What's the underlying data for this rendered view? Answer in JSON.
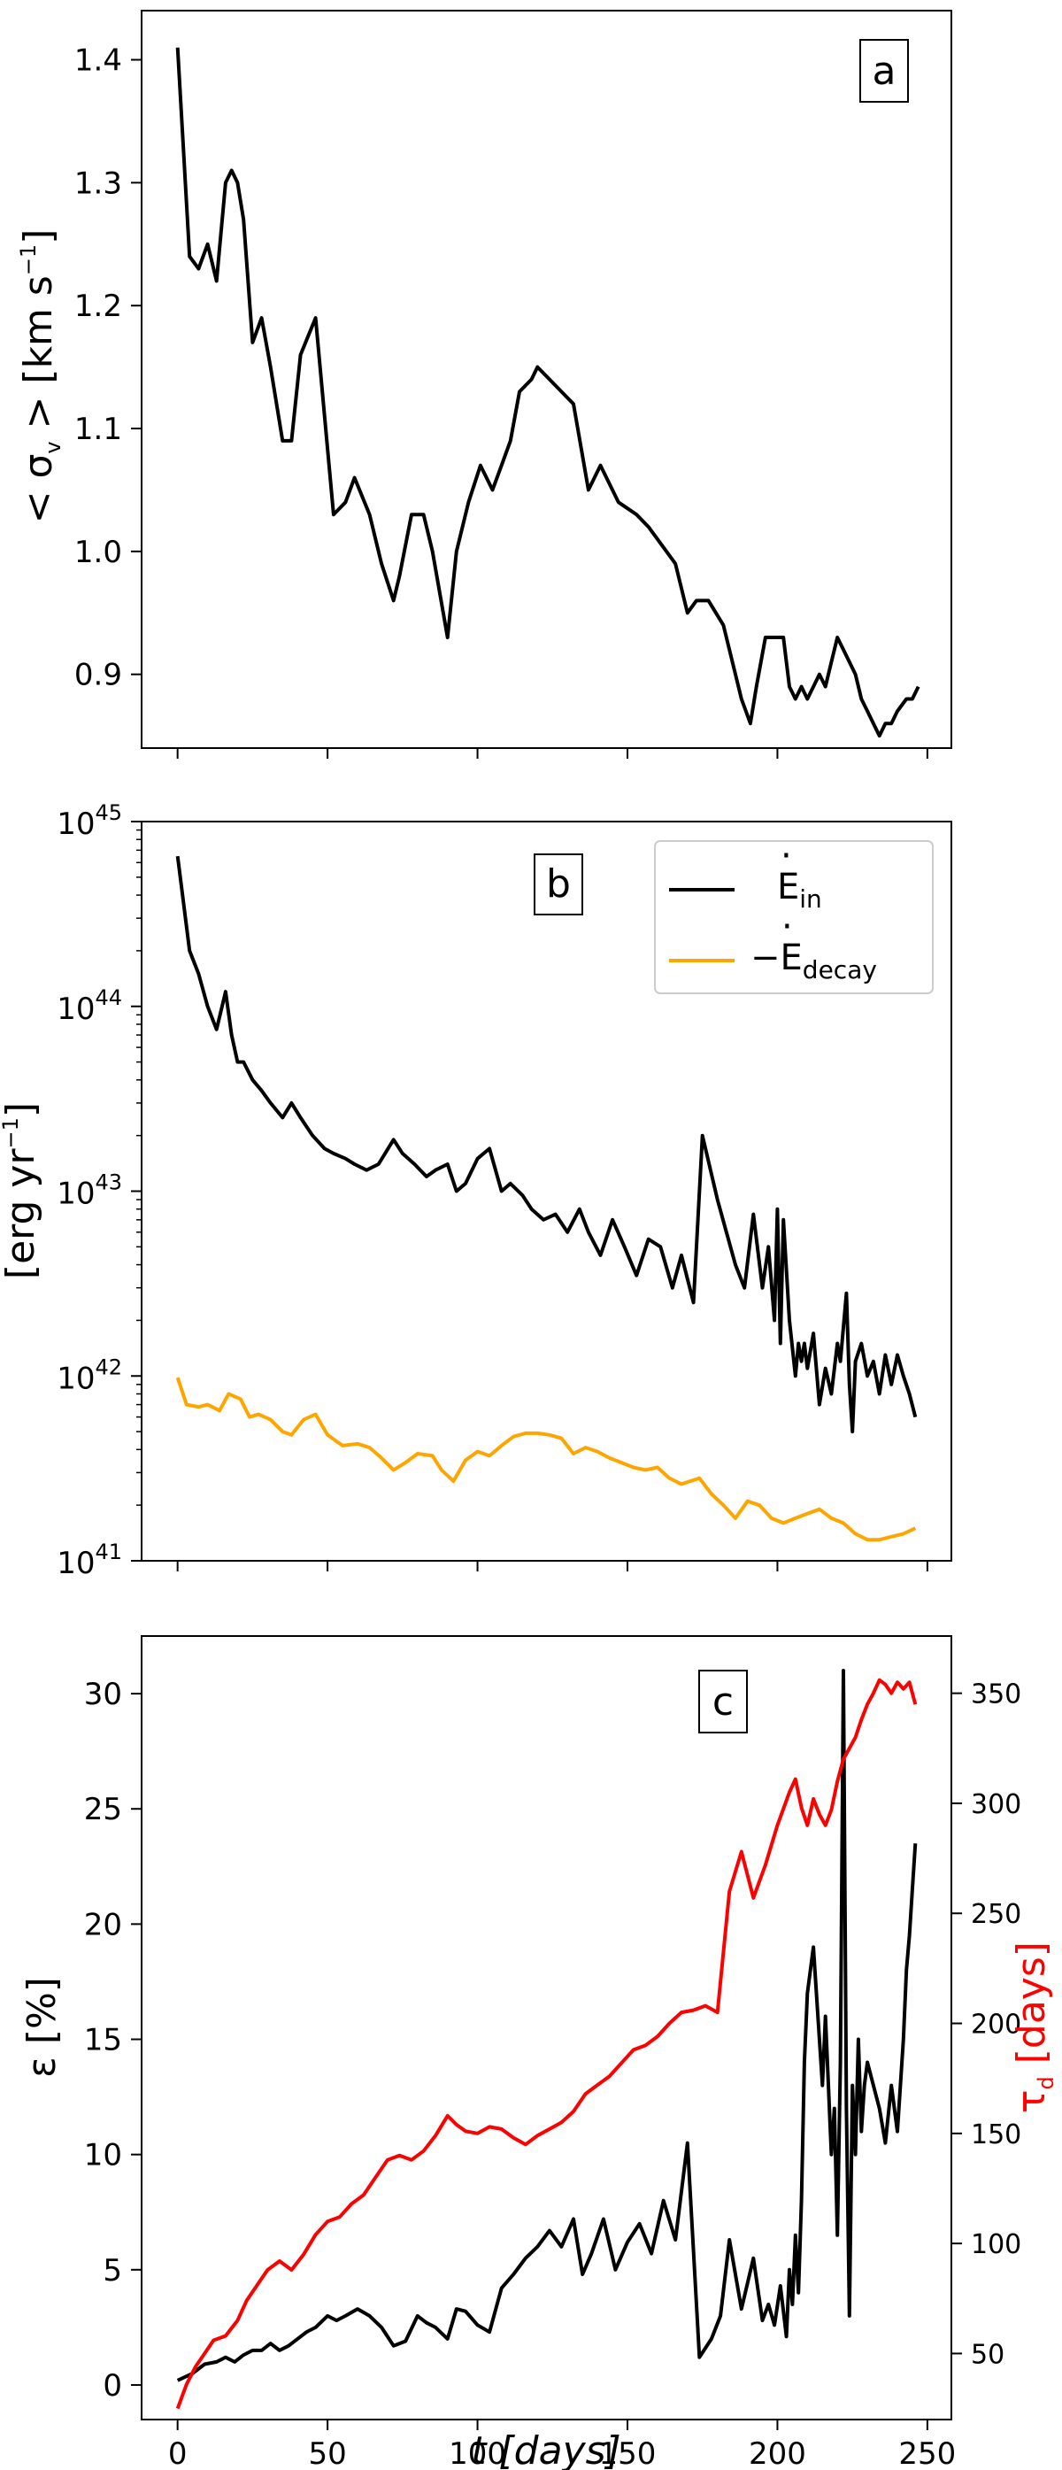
{
  "chart_data": [
    {
      "type": "line",
      "panel_label": "a",
      "ylabel": "< σ_v > [km s^-1]",
      "xlim": [
        -12,
        258
      ],
      "ylim": [
        0.84,
        1.44
      ],
      "xticks": [
        0,
        50,
        100,
        150,
        200,
        250
      ],
      "yticks": [
        0.9,
        1.0,
        1.1,
        1.2,
        1.3,
        1.4
      ],
      "ytick_labels": [
        "0.9",
        "1.0",
        "1.1",
        "1.2",
        "1.3",
        "1.4"
      ],
      "series": [
        {
          "color": "#000000",
          "x": [
            0,
            4,
            7,
            10,
            13,
            16,
            18,
            20,
            22,
            25,
            28,
            31,
            35,
            38,
            41,
            46,
            52,
            56,
            59,
            64,
            68,
            72,
            74,
            78,
            82,
            85,
            90,
            93,
            97,
            101,
            105,
            108,
            111,
            114,
            118,
            120,
            124,
            128,
            132,
            137,
            141,
            143,
            147,
            153,
            157,
            163,
            166,
            170,
            173,
            177,
            182,
            186,
            188,
            191,
            193,
            196,
            198,
            202,
            204,
            206,
            208,
            210,
            212,
            214,
            216,
            218,
            220,
            222,
            224,
            226,
            228,
            230,
            232,
            234,
            236,
            238,
            240,
            243,
            245,
            247
          ],
          "y": [
            1.41,
            1.24,
            1.23,
            1.25,
            1.22,
            1.3,
            1.31,
            1.3,
            1.27,
            1.17,
            1.19,
            1.15,
            1.09,
            1.09,
            1.16,
            1.19,
            1.03,
            1.04,
            1.06,
            1.03,
            0.99,
            0.96,
            0.98,
            1.03,
            1.03,
            1.0,
            0.93,
            1.0,
            1.04,
            1.07,
            1.05,
            1.07,
            1.09,
            1.13,
            1.14,
            1.15,
            1.14,
            1.13,
            1.12,
            1.05,
            1.07,
            1.06,
            1.04,
            1.03,
            1.02,
            1.0,
            0.99,
            0.95,
            0.96,
            0.96,
            0.94,
            0.9,
            0.88,
            0.86,
            0.89,
            0.93,
            0.93,
            0.93,
            0.89,
            0.88,
            0.89,
            0.88,
            0.89,
            0.9,
            0.89,
            0.91,
            0.93,
            0.92,
            0.91,
            0.9,
            0.88,
            0.87,
            0.86,
            0.85,
            0.86,
            0.86,
            0.87,
            0.88,
            0.88,
            0.89
          ]
        }
      ]
    },
    {
      "type": "line",
      "panel_label": "b",
      "ylabel": "[erg yr^-1]",
      "yscale": "log",
      "xlim": [
        -12,
        258
      ],
      "ylim": [
        1e+41,
        1e+45
      ],
      "xticks": [
        0,
        50,
        100,
        150,
        200,
        250
      ],
      "ytick_exponents": [
        41,
        42,
        43,
        44,
        45
      ],
      "legend_position": "top-right",
      "series": [
        {
          "name": "Ė_in",
          "color": "#000000",
          "x": [
            0,
            4,
            7,
            10,
            13,
            16,
            18,
            20,
            22,
            25,
            28,
            31,
            35,
            38,
            41,
            45,
            49,
            52,
            56,
            59,
            63,
            67,
            72,
            75,
            79,
            83,
            86,
            90,
            93,
            96,
            100,
            104,
            108,
            111,
            115,
            118,
            122,
            126,
            130,
            134,
            137,
            141,
            145,
            149,
            153,
            157,
            161,
            165,
            168,
            172,
            175,
            180,
            183,
            186,
            189,
            192,
            195,
            197,
            199,
            200,
            201,
            202,
            204,
            206,
            207,
            208,
            209,
            210,
            212,
            214,
            216,
            218,
            220,
            221,
            223,
            224,
            225,
            226,
            228,
            230,
            232,
            234,
            236,
            238,
            240,
            242,
            244,
            246
          ],
          "y": [
            6.5e+44,
            2e+44,
            1.5e+44,
            1e+44,
            7.5e+43,
            1.2e+44,
            7e+43,
            5e+43,
            5e+43,
            4e+43,
            3.5e+43,
            3e+43,
            2.5e+43,
            3e+43,
            2.5e+43,
            2e+43,
            1.7e+43,
            1.6e+43,
            1.5e+43,
            1.4e+43,
            1.3e+43,
            1.4e+43,
            1.9e+43,
            1.6e+43,
            1.4e+43,
            1.2e+43,
            1.3e+43,
            1.4e+43,
            1e+43,
            1.1e+43,
            1.5e+43,
            1.7e+43,
            1e+43,
            1.1e+43,
            9.5e+42,
            8e+42,
            7e+42,
            7.5e+42,
            6e+42,
            8e+42,
            6e+42,
            4.5e+42,
            7e+42,
            5e+42,
            3.5e+42,
            5.5e+42,
            5e+42,
            3e+42,
            4.5e+42,
            2.5e+42,
            2e+43,
            9e+42,
            6e+42,
            4e+42,
            3e+42,
            7.5e+42,
            3e+42,
            5e+42,
            2e+42,
            8e+42,
            1.5e+42,
            7e+42,
            2e+42,
            1e+42,
            1.5e+42,
            1.2e+42,
            1.5e+42,
            1.1e+42,
            1.7e+42,
            7e+41,
            1.1e+42,
            8e+41,
            1.5e+42,
            1.2e+42,
            2.8e+42,
            9e+41,
            5e+41,
            1.2e+42,
            1.5e+42,
            1e+42,
            1.2e+42,
            8e+41,
            1.3e+42,
            9e+41,
            1.3e+42,
            1e+42,
            8e+41,
            6e+41
          ]
        },
        {
          "name": "−Ė_decay",
          "color": "#FFA500",
          "x": [
            0,
            3,
            7,
            10,
            14,
            17,
            21,
            24,
            27,
            31,
            35,
            38,
            42,
            46,
            50,
            55,
            60,
            64,
            68,
            72,
            76,
            80,
            85,
            88,
            92,
            96,
            100,
            104,
            108,
            112,
            116,
            120,
            124,
            128,
            132,
            136,
            140,
            144,
            148,
            152,
            156,
            160,
            164,
            168,
            171,
            174,
            178,
            182,
            186,
            190,
            194,
            198,
            202,
            206,
            210,
            214,
            218,
            222,
            226,
            230,
            234,
            238,
            242,
            246
          ],
          "y": [
            9.8e+41,
            7e+41,
            6.8e+41,
            7e+41,
            6.5e+41,
            8e+41,
            7.5e+41,
            6e+41,
            6.2e+41,
            5.8e+41,
            5e+41,
            4.8e+41,
            5.8e+41,
            6.2e+41,
            4.8e+41,
            4.2e+41,
            4.3e+41,
            4.1e+41,
            3.6e+41,
            3.1e+41,
            3.4e+41,
            3.8e+41,
            3.7e+41,
            3.1e+41,
            2.7e+41,
            3.5e+41,
            3.9e+41,
            3.7e+41,
            4.2e+41,
            4.7e+41,
            4.9e+41,
            4.9e+41,
            4.8e+41,
            4.6e+41,
            3.8e+41,
            4.1e+41,
            3.9e+41,
            3.6e+41,
            3.4e+41,
            3.2e+41,
            3.1e+41,
            3.2e+41,
            2.8e+41,
            2.6e+41,
            2.7e+41,
            2.8e+41,
            2.3e+41,
            2e+41,
            1.7e+41,
            2.1e+41,
            2e+41,
            1.7e+41,
            1.6e+41,
            1.7e+41,
            1.8e+41,
            1.9e+41,
            1.7e+41,
            1.6e+41,
            1.4e+41,
            1.3e+41,
            1.3e+41,
            1.35e+41,
            1.4e+41,
            1.5e+41
          ]
        }
      ]
    },
    {
      "type": "line",
      "panel_label": "c",
      "ylabel": "ε [%]",
      "ylabel_right": "τ_d [days]",
      "xlabel": "t [days]",
      "xlim": [
        -12,
        258
      ],
      "ylim": [
        -1.5,
        32.5
      ],
      "ylim_right": [
        20,
        376
      ],
      "xticks": [
        0,
        50,
        100,
        150,
        200,
        250
      ],
      "xtick_labels": [
        "0",
        "50",
        "100",
        "150",
        "200",
        "250"
      ],
      "yticks": [
        0,
        5,
        10,
        15,
        20,
        25,
        30
      ],
      "ytick_labels": [
        "0",
        "5",
        "10",
        "15",
        "20",
        "25",
        "30"
      ],
      "yticks_right": [
        50,
        100,
        150,
        200,
        250,
        300,
        350
      ],
      "ytick_labels_right": [
        "50",
        "100",
        "150",
        "200",
        "250",
        "300",
        "350"
      ],
      "series": [
        {
          "axis": "left",
          "color": "#000000",
          "x": [
            0,
            5,
            9,
            13,
            16,
            19,
            22,
            25,
            28,
            31,
            34,
            37,
            40,
            43,
            46,
            50,
            53,
            56,
            60,
            64,
            68,
            72,
            76,
            80,
            83,
            86,
            90,
            93,
            96,
            100,
            104,
            108,
            112,
            116,
            120,
            124,
            128,
            132,
            135,
            138,
            142,
            146,
            150,
            154,
            158,
            162,
            166,
            170,
            174,
            178,
            181,
            184,
            188,
            192,
            195,
            197,
            199,
            201,
            203,
            204,
            205,
            206,
            207,
            208,
            209,
            210,
            212,
            214,
            215,
            216,
            218,
            219,
            220,
            221,
            222,
            223,
            224,
            225,
            226,
            227,
            228,
            229,
            230,
            232,
            234,
            236,
            238,
            240,
            242,
            243,
            244,
            245,
            246
          ],
          "y": [
            0.2,
            0.5,
            0.9,
            1.0,
            1.2,
            1.0,
            1.3,
            1.5,
            1.5,
            1.8,
            1.5,
            1.7,
            2.0,
            2.3,
            2.5,
            3.0,
            2.8,
            3.0,
            3.3,
            3.0,
            2.5,
            1.7,
            1.9,
            3.0,
            2.7,
            2.5,
            2.0,
            3.3,
            3.2,
            2.6,
            2.3,
            4.2,
            4.8,
            5.5,
            6.0,
            6.7,
            6.0,
            7.2,
            4.8,
            5.7,
            7.2,
            5.0,
            6.2,
            7.0,
            5.7,
            8.0,
            6.3,
            10.5,
            1.2,
            2.0,
            3.0,
            6.3,
            3.3,
            5.5,
            2.8,
            3.5,
            2.6,
            4.3,
            2.1,
            5.0,
            3.5,
            6.5,
            4.0,
            8.0,
            14.0,
            17.0,
            19.0,
            15.0,
            13.0,
            16.0,
            10.0,
            12.0,
            6.5,
            14.0,
            31.0,
            12.0,
            3.0,
            13.0,
            10.0,
            15.0,
            11.0,
            13.0,
            14.0,
            13.0,
            12.0,
            10.5,
            13.0,
            11.0,
            15.0,
            18.0,
            19.5,
            21.5,
            23.5
          ]
        },
        {
          "axis": "right",
          "color": "#FF0000",
          "x": [
            0,
            3,
            6,
            9,
            12,
            16,
            20,
            23,
            26,
            30,
            34,
            38,
            42,
            46,
            50,
            54,
            58,
            62,
            66,
            70,
            74,
            78,
            82,
            86,
            90,
            93,
            96,
            100,
            104,
            108,
            112,
            116,
            120,
            124,
            128,
            132,
            136,
            140,
            144,
            148,
            152,
            156,
            160,
            164,
            168,
            172,
            176,
            180,
            184,
            188,
            192,
            196,
            200,
            204,
            206,
            208,
            210,
            212,
            214,
            216,
            218,
            220,
            222,
            224,
            226,
            228,
            230,
            232,
            234,
            236,
            238,
            240,
            242,
            244,
            246
          ],
          "y": [
            25,
            36,
            44,
            50,
            56,
            58,
            65,
            74,
            80,
            88,
            92,
            88,
            95,
            104,
            110,
            112,
            118,
            122,
            130,
            138,
            140,
            138,
            142,
            149,
            158,
            154,
            151,
            150,
            153,
            152,
            148,
            145,
            149,
            152,
            155,
            160,
            168,
            172,
            176,
            182,
            188,
            190,
            194,
            200,
            205,
            206,
            208,
            205,
            260,
            278,
            257,
            272,
            290,
            305,
            311,
            298,
            290,
            302,
            295,
            290,
            297,
            310,
            320,
            325,
            330,
            338,
            345,
            350,
            356,
            354,
            350,
            355,
            352,
            355,
            345
          ]
        }
      ]
    }
  ]
}
